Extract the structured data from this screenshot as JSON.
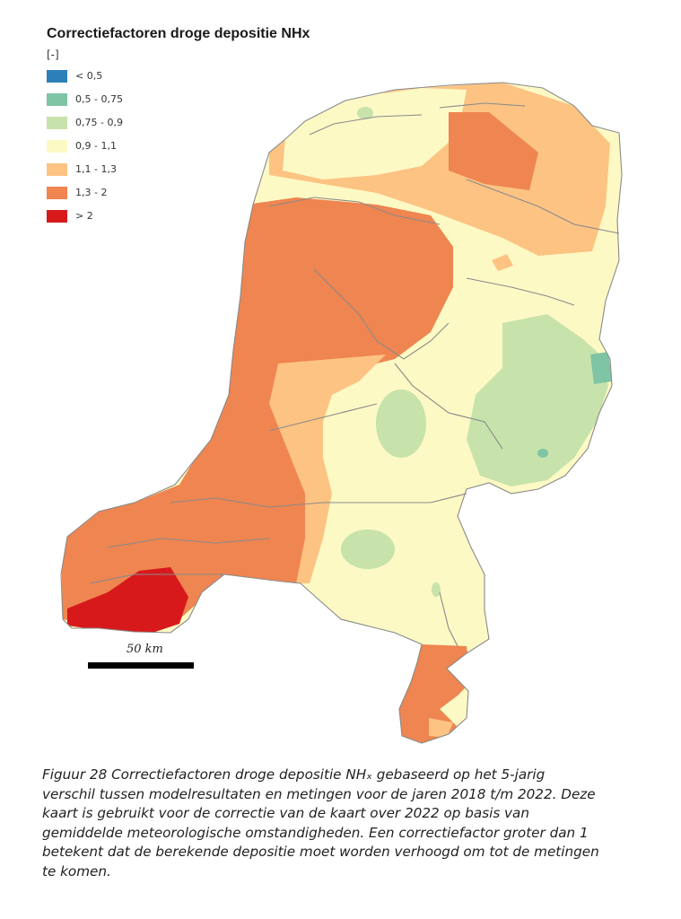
{
  "map": {
    "title": "Correctiefactoren droge depositie NHx",
    "unit": "[-]",
    "legend": [
      {
        "label": "< 0,5",
        "color": "#2c7fb8"
      },
      {
        "label": "0,5 - 0,75",
        "color": "#7fc4a4"
      },
      {
        "label": "0,75 - 0,9",
        "color": "#c7e2ab"
      },
      {
        "label": "0,9 - 1,1",
        "color": "#fdf9c4"
      },
      {
        "label": "1,1 - 1,3",
        "color": "#fcc383"
      },
      {
        "label": "1,3 - 2",
        "color": "#ef8550"
      },
      {
        "label": "> 2",
        "color": "#d7191c"
      }
    ],
    "scale_bar_label": "50 km"
  },
  "caption": {
    "lines": [
      "Figuur 28 Correctiefactoren droge depositie NHₓ gebaseerd op het 5-jarig",
      "verschil tussen modelresultaten en metingen voor de jaren 2018 t/m 2022. Deze",
      "kaart is gebruikt voor de correctie van de kaart over 2022 op basis van",
      "gemiddelde meteorologische omstandigheden. Een correctiefactor groter dan 1",
      "betekent dat de berekende depositie moet worden verhoogd om tot de metingen",
      "te komen."
    ]
  }
}
